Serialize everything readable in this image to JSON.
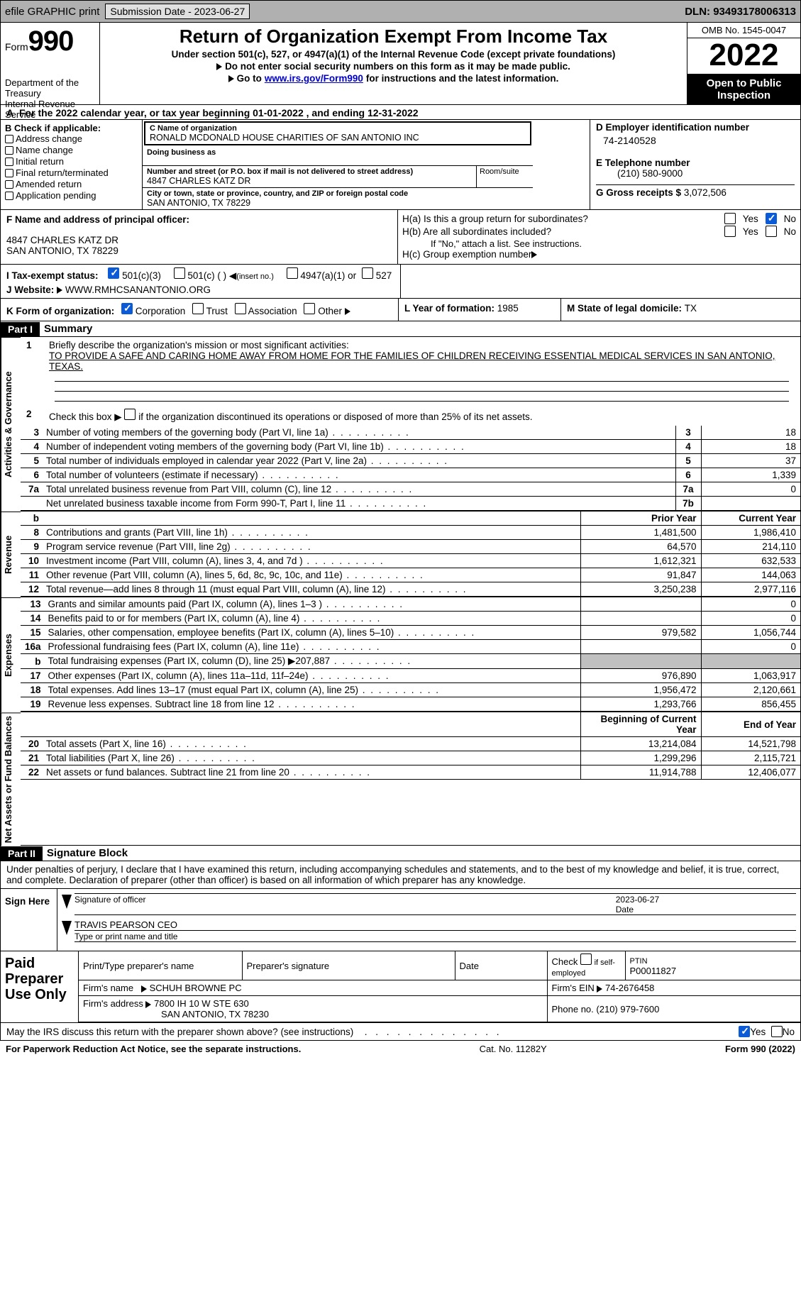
{
  "topbar": {
    "efile": "efile GRAPHIC print",
    "submission_label": "Submission Date - 2023-06-27",
    "dln": "DLN: 93493178006313"
  },
  "header": {
    "form_label": "Form",
    "form_num": "990",
    "dept": "Department of the Treasury",
    "irs": "Internal Revenue Service",
    "title": "Return of Organization Exempt From Income Tax",
    "sub": "Under section 501(c), 527, or 4947(a)(1) of the Internal Revenue Code (except private foundations)",
    "line1": "Do not enter social security numbers on this form as it may be made public.",
    "line2a": "Go to ",
    "line2_link": "www.irs.gov/Form990",
    "line2b": " for instructions and the latest information.",
    "omb": "OMB No. 1545-0047",
    "year": "2022",
    "open": "Open to Public Inspection"
  },
  "sectionA": {
    "cal": "For the 2022 calendar year, or tax year beginning 01-01-2022   , and ending 12-31-2022",
    "a_marker": "A"
  },
  "sectionB": {
    "label": "B Check if applicable:",
    "items": [
      "Address change",
      "Name change",
      "Initial return",
      "Final return/terminated",
      "Amended return",
      "Application pending"
    ]
  },
  "sectionC": {
    "name_label": "C Name of organization",
    "name": "RONALD MCDONALD HOUSE CHARITIES OF SAN ANTONIO INC",
    "dba_label": "Doing business as",
    "addr_label": "Number and street (or P.O. box if mail is not delivered to street address)",
    "addr": "4847 CHARLES KATZ DR",
    "room_label": "Room/suite",
    "city_label": "City or town, state or province, country, and ZIP or foreign postal code",
    "city": "SAN ANTONIO, TX  78229"
  },
  "sectionD": {
    "label": "D Employer identification number",
    "ein": "74-2140528",
    "elabel": "E Telephone number",
    "phone": "(210) 580-9000",
    "glabel": "G Gross receipts $ ",
    "gross": "3,072,506"
  },
  "sectionF": {
    "label": "F Name and address of principal officer:",
    "line1": "4847 CHARLES KATZ DR",
    "line2": "SAN ANTONIO, TX  78229"
  },
  "sectionH": {
    "ha": "H(a)  Is this a group return for subordinates?",
    "hb": "H(b)  Are all subordinates included?",
    "hb_note": "If \"No,\" attach a list. See instructions.",
    "hc": "H(c)  Group exemption number",
    "yes": "Yes",
    "no": "No"
  },
  "sectionI": {
    "label": "I   Tax-exempt status:",
    "a": "501(c)(3)",
    "b": "501(c) (  )",
    "b_note": "(insert no.)",
    "c": "4947(a)(1) or",
    "d": "527"
  },
  "sectionJ": {
    "label": "J   Website:",
    "url": "WWW.RMHCSANANTONIO.ORG"
  },
  "sectionK": {
    "label": "K Form of organization:",
    "a": "Corporation",
    "b": "Trust",
    "c": "Association",
    "d": "Other"
  },
  "sectionL": {
    "label": "L Year of formation: ",
    "val": "1985"
  },
  "sectionM": {
    "label": "M State of legal domicile: ",
    "val": "TX"
  },
  "part1": {
    "part": "Part I",
    "title": "Summary"
  },
  "mission": {
    "num": "1",
    "label": "Briefly describe the organization's mission or most significant activities:",
    "text": "TO PROVIDE A SAFE AND CARING HOME AWAY FROM HOME FOR THE FAMILIES OF CHILDREN RECEIVING ESSENTIAL MEDICAL SERVICES IN SAN ANTONIO, TEXAS."
  },
  "line2": {
    "num": "2",
    "text": "Check this box ▶",
    "text2": "if the organization discontinued its operations or disposed of more than 25% of its net assets."
  },
  "tabs": {
    "ag": "Activities & Governance",
    "rev": "Revenue",
    "exp": "Expenses",
    "net": "Net Assets or Fund Balances"
  },
  "rows_ag": [
    {
      "n": "3",
      "t": "Number of voting members of the governing body (Part VI, line 1a)",
      "b": "3",
      "v": "18"
    },
    {
      "n": "4",
      "t": "Number of independent voting members of the governing body (Part VI, line 1b)",
      "b": "4",
      "v": "18"
    },
    {
      "n": "5",
      "t": "Total number of individuals employed in calendar year 2022 (Part V, line 2a)",
      "b": "5",
      "v": "37"
    },
    {
      "n": "6",
      "t": "Total number of volunteers (estimate if necessary)",
      "b": "6",
      "v": "1,339"
    },
    {
      "n": "7a",
      "t": "Total unrelated business revenue from Part VIII, column (C), line 12",
      "b": "7a",
      "v": "0"
    },
    {
      "n": "",
      "t": "Net unrelated business taxable income from Form 990-T, Part I, line 11",
      "b": "7b",
      "v": ""
    }
  ],
  "col_hdr": {
    "b": "b",
    "py": "Prior Year",
    "cy": "Current Year"
  },
  "rows_rev": [
    {
      "n": "8",
      "t": "Contributions and grants (Part VIII, line 1h)",
      "py": "1,481,500",
      "cy": "1,986,410"
    },
    {
      "n": "9",
      "t": "Program service revenue (Part VIII, line 2g)",
      "py": "64,570",
      "cy": "214,110"
    },
    {
      "n": "10",
      "t": "Investment income (Part VIII, column (A), lines 3, 4, and 7d )",
      "py": "1,612,321",
      "cy": "632,533"
    },
    {
      "n": "11",
      "t": "Other revenue (Part VIII, column (A), lines 5, 6d, 8c, 9c, 10c, and 11e)",
      "py": "91,847",
      "cy": "144,063"
    },
    {
      "n": "12",
      "t": "Total revenue—add lines 8 through 11 (must equal Part VIII, column (A), line 12)",
      "py": "3,250,238",
      "cy": "2,977,116"
    }
  ],
  "rows_exp": [
    {
      "n": "13",
      "t": "Grants and similar amounts paid (Part IX, column (A), lines 1–3 )",
      "py": "",
      "cy": "0"
    },
    {
      "n": "14",
      "t": "Benefits paid to or for members (Part IX, column (A), line 4)",
      "py": "",
      "cy": "0"
    },
    {
      "n": "15",
      "t": "Salaries, other compensation, employee benefits (Part IX, column (A), lines 5–10)",
      "py": "979,582",
      "cy": "1,056,744"
    },
    {
      "n": "16a",
      "t": "Professional fundraising fees (Part IX, column (A), line 11e)",
      "py": "",
      "cy": "0"
    },
    {
      "n": "b",
      "t": "Total fundraising expenses (Part IX, column (D), line 25) ▶207,887",
      "py": "GREY",
      "cy": "GREY"
    },
    {
      "n": "17",
      "t": "Other expenses (Part IX, column (A), lines 11a–11d, 11f–24e)",
      "py": "976,890",
      "cy": "1,063,917"
    },
    {
      "n": "18",
      "t": "Total expenses. Add lines 13–17 (must equal Part IX, column (A), line 25)",
      "py": "1,956,472",
      "cy": "2,120,661"
    },
    {
      "n": "19",
      "t": "Revenue less expenses. Subtract line 18 from line 12",
      "py": "1,293,766",
      "cy": "856,455"
    }
  ],
  "col_hdr2": {
    "py": "Beginning of Current Year",
    "cy": "End of Year"
  },
  "rows_net": [
    {
      "n": "20",
      "t": "Total assets (Part X, line 16)",
      "py": "13,214,084",
      "cy": "14,521,798"
    },
    {
      "n": "21",
      "t": "Total liabilities (Part X, line 26)",
      "py": "1,299,296",
      "cy": "2,115,721"
    },
    {
      "n": "22",
      "t": "Net assets or fund balances. Subtract line 21 from line 20",
      "py": "11,914,788",
      "cy": "12,406,077"
    }
  ],
  "part2": {
    "part": "Part II",
    "title": "Signature Block"
  },
  "sig": {
    "decl": "Under penalties of perjury, I declare that I have examined this return, including accompanying schedules and statements, and to the best of my knowledge and belief, it is true, correct, and complete. Declaration of preparer (other than officer) is based on all information of which preparer has any knowledge.",
    "sign_here": "Sign Here",
    "sig_officer": "Signature of officer",
    "date": "Date",
    "date_val": "2023-06-27",
    "name": "TRAVIS PEARSON CEO",
    "name_label": "Type or print name and title"
  },
  "preparer": {
    "lab": "Paid Preparer Use Only",
    "h1": "Print/Type preparer's name",
    "h2": "Preparer's signature",
    "h3": "Date",
    "h4": "Check",
    "h4b": "if self-employed",
    "h5": "PTIN",
    "ptin": "P00011827",
    "firm_lab": "Firm's name",
    "firm": "SCHUH BROWNE PC",
    "ein_lab": "Firm's EIN",
    "ein": "74-2676458",
    "addr_lab": "Firm's address",
    "addr1": "7800 IH 10 W STE 630",
    "addr2": "SAN ANTONIO, TX  78230",
    "phone_lab": "Phone no.",
    "phone": "(210) 979-7600"
  },
  "discuss": {
    "q": "May the IRS discuss this return with the preparer shown above? (see instructions)",
    "yes": "Yes",
    "no": "No"
  },
  "footer": {
    "a": "For Paperwork Reduction Act Notice, see the separate instructions.",
    "b": "Cat. No. 11282Y",
    "c": "Form 990 (2022)"
  }
}
